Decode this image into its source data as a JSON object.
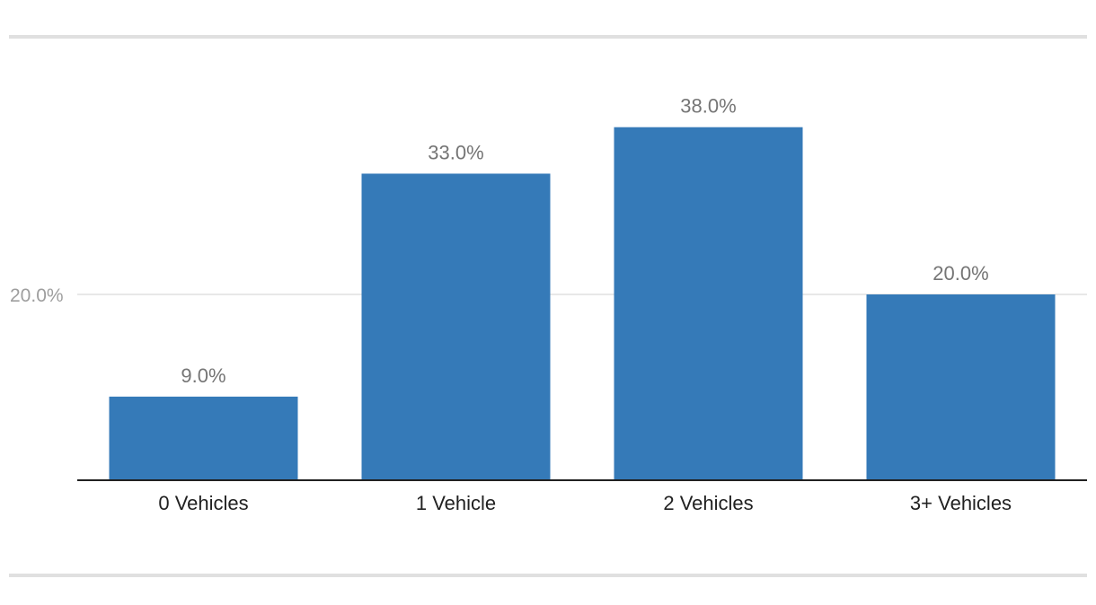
{
  "chart_data": {
    "type": "bar",
    "categories": [
      "0 Vehicles",
      "1 Vehicle",
      "2 Vehicles",
      "3+ Vehicles"
    ],
    "values": [
      9.0,
      33.0,
      38.0,
      20.0
    ],
    "value_labels": [
      "9.0%",
      "33.0%",
      "38.0%",
      "20.0%"
    ],
    "y_ticks": [
      {
        "value": 20.0,
        "label": "20.0%"
      }
    ],
    "ylim": [
      0,
      40
    ],
    "grid": true,
    "legend": "none",
    "title": "",
    "xlabel": "",
    "ylabel": "",
    "colors": {
      "bar": "#357ab8",
      "gridline": "#e0e0e0",
      "axis": "#212121"
    }
  }
}
